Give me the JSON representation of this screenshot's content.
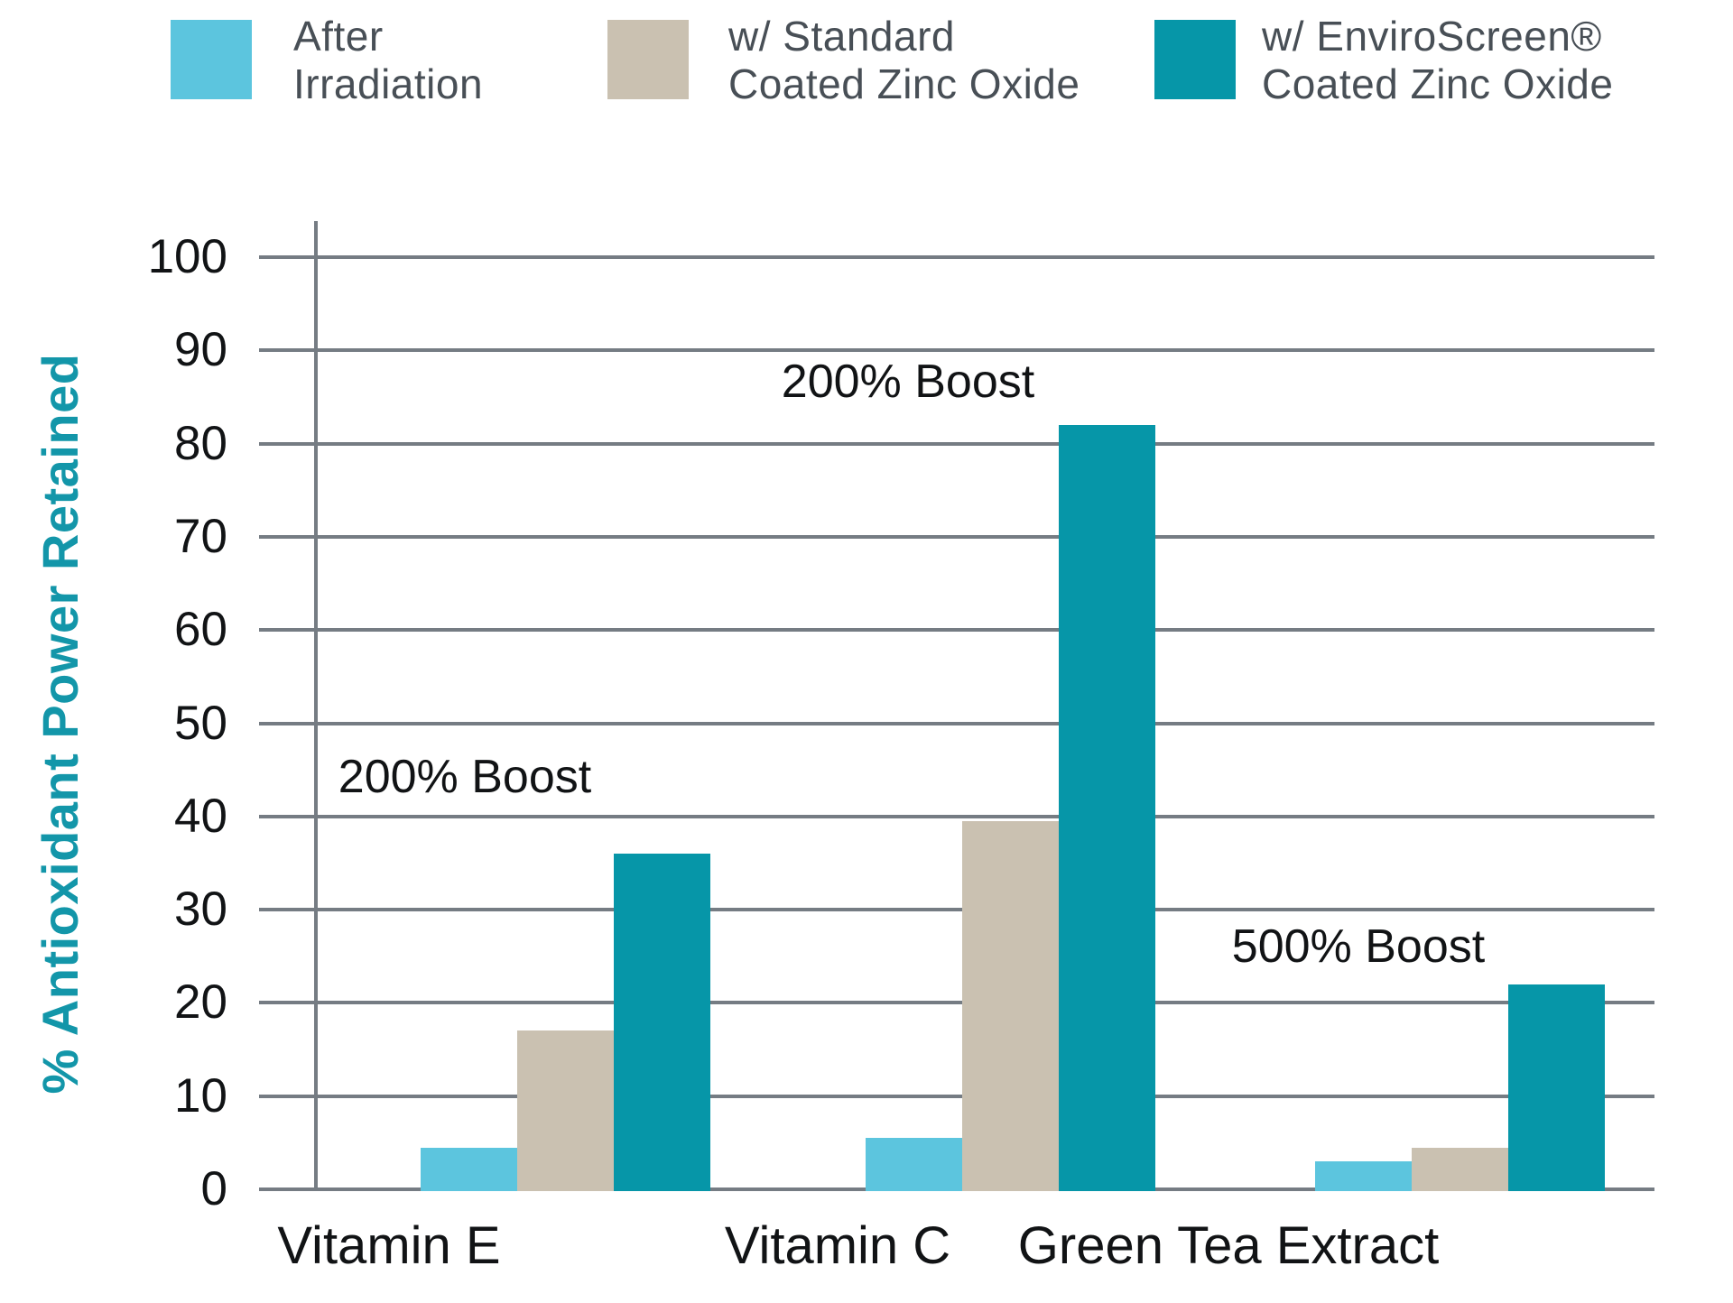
{
  "chart_data": {
    "type": "bar",
    "title": "",
    "xlabel": "",
    "ylabel": "% Antioxidant Power Retained",
    "categories": [
      "Vitamin E",
      "Vitamin C",
      "Green Tea Extract"
    ],
    "series": [
      {
        "name": "After Irradiation",
        "color": "#5cc5de",
        "values": [
          4.5,
          5.5,
          3
        ]
      },
      {
        "name": "w/ Standard Coated Zinc Oxide",
        "color": "#cac1b1",
        "values": [
          17,
          39.5,
          4.5
        ]
      },
      {
        "name": "w/ EnviroScreen® Coated Zinc Oxide",
        "color": "#0696a8",
        "values": [
          36,
          82,
          22
        ]
      }
    ],
    "annotations": [
      {
        "text": "200% Boost",
        "category": "Vitamin E"
      },
      {
        "text": "200% Boost",
        "category": "Vitamin C"
      },
      {
        "text": "500% Boost",
        "category": "Green Tea Extract"
      }
    ],
    "ylim": [
      0,
      100
    ],
    "ytick_step": 10,
    "ytick_labels": [
      "0",
      "10",
      "20",
      "30",
      "40",
      "50",
      "60",
      "70",
      "80",
      "90",
      "100"
    ],
    "grid": true,
    "legend_position": "top",
    "colors": {
      "gridline": "#757c83",
      "axis": "#757c83",
      "tick_text": "#111315",
      "annotation_text": "#111315",
      "category_text": "#111315",
      "legend_text": "#484f56",
      "y_title": "#1396a9"
    }
  },
  "legend": {
    "items": [
      {
        "lines": [
          "After",
          "Irradiation"
        ],
        "color": "#5cc5de"
      },
      {
        "lines": [
          "w/ Standard",
          "Coated Zinc Oxide"
        ],
        "color": "#cac1b1"
      },
      {
        "lines": [
          "w/ EnviroScreen®",
          "Coated Zinc Oxide"
        ],
        "color": "#0696a8"
      }
    ]
  }
}
